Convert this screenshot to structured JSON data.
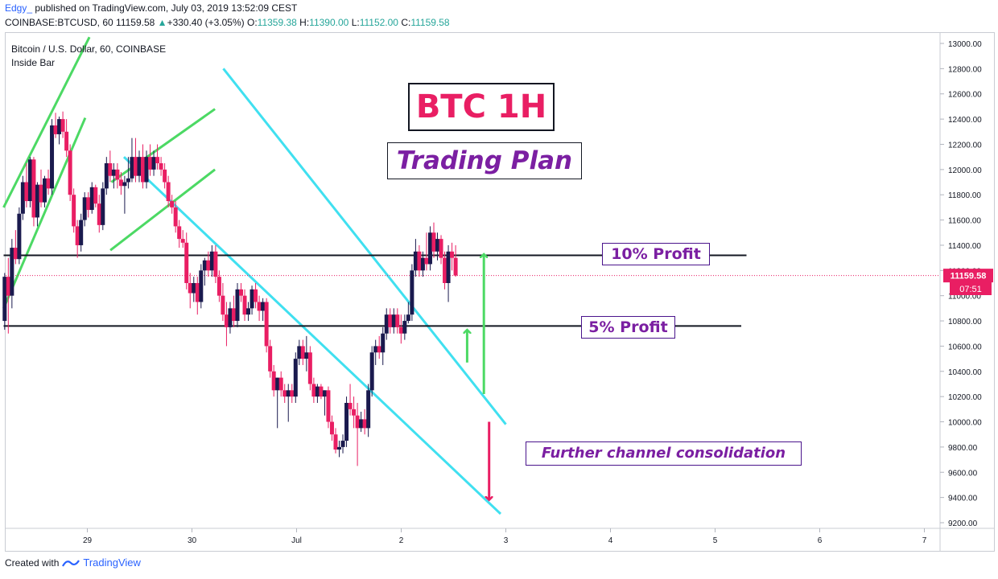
{
  "header": {
    "user": "Edgy_",
    "published": "published on TradingView.com, July 03, 2019 13:52:09 CEST",
    "symbol": "COINBASE:BTCUSD, 60",
    "last": "11159.58",
    "change_arrow": "▲",
    "change": "+330.40 (+3.05%)",
    "o_label": "O:",
    "o_value": "11359.38",
    "h_label": "H:",
    "h_value": "11390.00",
    "l_label": "L:",
    "l_value": "11152.00",
    "c_label": "C:",
    "c_value": "11159.58"
  },
  "legend": {
    "series_title": "Bitcoin / U.S. Dollar, 60, COINBASE",
    "indicator": "Inside Bar"
  },
  "annotations": {
    "title": "BTC 1H",
    "subtitle": "Trading Plan",
    "profit_10": "10% Profit",
    "profit_5": "5% Profit",
    "consolidation": "Further channel consolidation"
  },
  "price_tag": {
    "price": "11159.58",
    "countdown": "07:51"
  },
  "footer": {
    "created_with": "Created with",
    "brand": "TradingView"
  },
  "colors": {
    "bull": "#1a1a4e",
    "bear": "#e91e63",
    "channel_cyan": "#40e0f0",
    "channel_green": "#4cd964",
    "level_line": "#131722",
    "price_line": "#e91e63",
    "title_red": "#e91e63",
    "annotation_purple": "#7b1fa2"
  },
  "chart_data": {
    "type": "candlestick",
    "symbol": "COINBASE:BTCUSD",
    "interval": "60",
    "ylim": [
      9200,
      13000
    ],
    "y_ticks": [
      9200,
      9400,
      9600,
      9800,
      10000,
      10200,
      10400,
      10600,
      10800,
      11000,
      11200,
      11400,
      11600,
      11800,
      12000,
      12200,
      12400,
      12600,
      12800,
      13000
    ],
    "y_tick_labels": [
      "9200.00",
      "9400.00",
      "9600.00",
      "9800.00",
      "10000.00",
      "10200.00",
      "10400.00",
      "10600.00",
      "10800.00",
      "11000.00",
      "11200.00",
      "11400.00",
      "11600.00",
      "11800.00",
      "12000.00",
      "12200.00",
      "12400.00",
      "12600.00",
      "12800.00",
      "13000.00"
    ],
    "x_tick_labels": [
      "29",
      "30",
      "Jul",
      "2",
      "3",
      "4",
      "5",
      "6",
      "7"
    ],
    "x_range_days": [
      -1.8,
      6.0
    ],
    "current_price": 11159.58,
    "levels": [
      {
        "name": "10% Profit",
        "price": 11320
      },
      {
        "name": "5% Profit",
        "price": 10760
      }
    ],
    "channels": [
      {
        "color": "cyan",
        "points": [
          [
            0.3,
            12800
          ],
          [
            3.0,
            9980
          ]
        ]
      },
      {
        "color": "cyan",
        "points": [
          [
            -0.65,
            12100
          ],
          [
            2.95,
            9270
          ]
        ]
      },
      {
        "color": "green",
        "points": [
          [
            -1.8,
            11700
          ],
          [
            -0.98,
            13050
          ]
        ]
      },
      {
        "color": "green",
        "points": [
          [
            -1.8,
            10900
          ],
          [
            -1.02,
            12410
          ]
        ]
      },
      {
        "color": "green",
        "points": [
          [
            -0.77,
            11900
          ],
          [
            0.22,
            12480
          ]
        ]
      },
      {
        "color": "green",
        "points": [
          [
            -0.78,
            11360
          ],
          [
            0.22,
            12000
          ]
        ]
      }
    ],
    "arrows": [
      {
        "color": "green",
        "from": [
          2.79,
          10220
        ],
        "to": [
          2.79,
          11330
        ]
      },
      {
        "color": "green",
        "from": [
          2.63,
          10470
        ],
        "to": [
          2.63,
          10730
        ]
      },
      {
        "color": "red",
        "from": [
          2.84,
          10000
        ],
        "to": [
          2.84,
          9380
        ]
      }
    ],
    "candles": [
      {
        "o": 10800,
        "h": 11180,
        "l": 10730,
        "c": 11150
      },
      {
        "o": 11150,
        "h": 11300,
        "l": 10700,
        "c": 11000
      },
      {
        "o": 11000,
        "h": 11450,
        "l": 10900,
        "c": 11380
      },
      {
        "o": 11380,
        "h": 11520,
        "l": 11250,
        "c": 11290
      },
      {
        "o": 11290,
        "h": 11700,
        "l": 11250,
        "c": 11650
      },
      {
        "o": 11650,
        "h": 11950,
        "l": 11600,
        "c": 11900
      },
      {
        "o": 11900,
        "h": 12050,
        "l": 11700,
        "c": 11750
      },
      {
        "o": 11750,
        "h": 12100,
        "l": 11700,
        "c": 12080
      },
      {
        "o": 12080,
        "h": 12100,
        "l": 11550,
        "c": 11620
      },
      {
        "o": 11620,
        "h": 11900,
        "l": 11550,
        "c": 11880
      },
      {
        "o": 11880,
        "h": 12000,
        "l": 11700,
        "c": 11740
      },
      {
        "o": 11740,
        "h": 11950,
        "l": 11700,
        "c": 11930
      },
      {
        "o": 11930,
        "h": 12000,
        "l": 11800,
        "c": 11850
      },
      {
        "o": 11850,
        "h": 12400,
        "l": 11800,
        "c": 12350
      },
      {
        "o": 12350,
        "h": 12450,
        "l": 12250,
        "c": 12280
      },
      {
        "o": 12280,
        "h": 12420,
        "l": 12200,
        "c": 12400
      },
      {
        "o": 12400,
        "h": 12460,
        "l": 12250,
        "c": 12300
      },
      {
        "o": 12300,
        "h": 12400,
        "l": 12100,
        "c": 12150
      },
      {
        "o": 12150,
        "h": 12200,
        "l": 11750,
        "c": 11800
      },
      {
        "o": 11800,
        "h": 11850,
        "l": 11500,
        "c": 11550
      },
      {
        "o": 11550,
        "h": 11600,
        "l": 11300,
        "c": 11400
      },
      {
        "o": 11400,
        "h": 11650,
        "l": 11350,
        "c": 11600
      },
      {
        "o": 11600,
        "h": 11820,
        "l": 11550,
        "c": 11780
      },
      {
        "o": 11780,
        "h": 11820,
        "l": 11620,
        "c": 11680
      },
      {
        "o": 11680,
        "h": 11900,
        "l": 11650,
        "c": 11860
      },
      {
        "o": 11860,
        "h": 11880,
        "l": 11700,
        "c": 11730
      },
      {
        "o": 11730,
        "h": 11800,
        "l": 11500,
        "c": 11560
      },
      {
        "o": 11560,
        "h": 11900,
        "l": 11520,
        "c": 11850
      },
      {
        "o": 11850,
        "h": 12100,
        "l": 11800,
        "c": 12050
      },
      {
        "o": 12050,
        "h": 12150,
        "l": 11900,
        "c": 11950
      },
      {
        "o": 11950,
        "h": 12050,
        "l": 11850,
        "c": 12000
      },
      {
        "o": 12000,
        "h": 12050,
        "l": 11850,
        "c": 11920
      },
      {
        "o": 11920,
        "h": 11980,
        "l": 11800,
        "c": 11870
      },
      {
        "o": 11870,
        "h": 11950,
        "l": 11650,
        "c": 11900
      },
      {
        "o": 11900,
        "h": 12100,
        "l": 11850,
        "c": 11930
      },
      {
        "o": 11930,
        "h": 12250,
        "l": 11900,
        "c": 12100
      },
      {
        "o": 12100,
        "h": 12250,
        "l": 11900,
        "c": 11950
      },
      {
        "o": 11950,
        "h": 12150,
        "l": 11900,
        "c": 12100
      },
      {
        "o": 12100,
        "h": 12200,
        "l": 11850,
        "c": 11900
      },
      {
        "o": 11900,
        "h": 12150,
        "l": 11850,
        "c": 12100
      },
      {
        "o": 12100,
        "h": 12200,
        "l": 11950,
        "c": 12000
      },
      {
        "o": 12000,
        "h": 12150,
        "l": 11950,
        "c": 12100
      },
      {
        "o": 12100,
        "h": 12200,
        "l": 12000,
        "c": 12050
      },
      {
        "o": 12050,
        "h": 12100,
        "l": 11950,
        "c": 12000
      },
      {
        "o": 12000,
        "h": 12050,
        "l": 11850,
        "c": 11900
      },
      {
        "o": 11900,
        "h": 11950,
        "l": 11700,
        "c": 11750
      },
      {
        "o": 11750,
        "h": 11800,
        "l": 11650,
        "c": 11700
      },
      {
        "o": 11700,
        "h": 11750,
        "l": 11500,
        "c": 11550
      },
      {
        "o": 11550,
        "h": 11600,
        "l": 11380,
        "c": 11450
      },
      {
        "o": 11450,
        "h": 11520,
        "l": 11380,
        "c": 11420
      },
      {
        "o": 11420,
        "h": 11500,
        "l": 11050,
        "c": 11100
      },
      {
        "o": 11100,
        "h": 11180,
        "l": 10900,
        "c": 11020
      },
      {
        "o": 11020,
        "h": 11150,
        "l": 10950,
        "c": 11100
      },
      {
        "o": 11100,
        "h": 11150,
        "l": 10850,
        "c": 10950
      },
      {
        "o": 10950,
        "h": 11250,
        "l": 10900,
        "c": 11200
      },
      {
        "o": 11200,
        "h": 11300,
        "l": 11080,
        "c": 11280
      },
      {
        "o": 11280,
        "h": 11350,
        "l": 11150,
        "c": 11200
      },
      {
        "o": 11200,
        "h": 11400,
        "l": 11150,
        "c": 11350
      },
      {
        "o": 11350,
        "h": 11400,
        "l": 11100,
        "c": 11150
      },
      {
        "o": 11150,
        "h": 11200,
        "l": 10950,
        "c": 11000
      },
      {
        "o": 11000,
        "h": 11100,
        "l": 10800,
        "c": 10850
      },
      {
        "o": 10850,
        "h": 10950,
        "l": 10600,
        "c": 10750
      },
      {
        "o": 10750,
        "h": 10950,
        "l": 10700,
        "c": 10900
      },
      {
        "o": 10900,
        "h": 11000,
        "l": 10750,
        "c": 10800
      },
      {
        "o": 10800,
        "h": 11100,
        "l": 10750,
        "c": 11050
      },
      {
        "o": 11050,
        "h": 11100,
        "l": 10950,
        "c": 11000
      },
      {
        "o": 11000,
        "h": 11050,
        "l": 10800,
        "c": 10850
      },
      {
        "o": 10850,
        "h": 10950,
        "l": 10800,
        "c": 10900
      },
      {
        "o": 10900,
        "h": 11080,
        "l": 10850,
        "c": 11050
      },
      {
        "o": 11050,
        "h": 11100,
        "l": 10900,
        "c": 10950
      },
      {
        "o": 10950,
        "h": 11000,
        "l": 10800,
        "c": 10880
      },
      {
        "o": 10880,
        "h": 10980,
        "l": 10800,
        "c": 10950
      },
      {
        "o": 10950,
        "h": 10980,
        "l": 10550,
        "c": 10600
      },
      {
        "o": 10600,
        "h": 10650,
        "l": 10350,
        "c": 10400
      },
      {
        "o": 10400,
        "h": 10450,
        "l": 10200,
        "c": 10250
      },
      {
        "o": 10250,
        "h": 10350,
        "l": 9950,
        "c": 10350
      },
      {
        "o": 10350,
        "h": 10400,
        "l": 10200,
        "c": 10250
      },
      {
        "o": 10250,
        "h": 10300,
        "l": 10150,
        "c": 10200
      },
      {
        "o": 10200,
        "h": 10300,
        "l": 10000,
        "c": 10250
      },
      {
        "o": 10250,
        "h": 10300,
        "l": 10150,
        "c": 10200
      },
      {
        "o": 10200,
        "h": 10550,
        "l": 10150,
        "c": 10500
      },
      {
        "o": 10500,
        "h": 10650,
        "l": 10450,
        "c": 10600
      },
      {
        "o": 10600,
        "h": 10650,
        "l": 10450,
        "c": 10500
      },
      {
        "o": 10500,
        "h": 10680,
        "l": 10400,
        "c": 10550
      },
      {
        "o": 10550,
        "h": 10600,
        "l": 10250,
        "c": 10300
      },
      {
        "o": 10300,
        "h": 10350,
        "l": 10150,
        "c": 10200
      },
      {
        "o": 10200,
        "h": 10300,
        "l": 10150,
        "c": 10280
      },
      {
        "o": 10280,
        "h": 10300,
        "l": 10180,
        "c": 10200
      },
      {
        "o": 10200,
        "h": 10250,
        "l": 10050,
        "c": 10250
      },
      {
        "o": 10250,
        "h": 10280,
        "l": 9950,
        "c": 10000
      },
      {
        "o": 10000,
        "h": 10050,
        "l": 9850,
        "c": 9900
      },
      {
        "o": 9900,
        "h": 9950,
        "l": 9750,
        "c": 9780
      },
      {
        "o": 9780,
        "h": 9850,
        "l": 9720,
        "c": 9800
      },
      {
        "o": 9800,
        "h": 9900,
        "l": 9750,
        "c": 9850
      },
      {
        "o": 9850,
        "h": 10200,
        "l": 9800,
        "c": 10150
      },
      {
        "o": 10150,
        "h": 10300,
        "l": 10050,
        "c": 10100
      },
      {
        "o": 10100,
        "h": 10200,
        "l": 9950,
        "c": 10050
      },
      {
        "o": 10050,
        "h": 10150,
        "l": 9650,
        "c": 9950
      },
      {
        "o": 9950,
        "h": 10080,
        "l": 9920,
        "c": 10020
      },
      {
        "o": 10020,
        "h": 10100,
        "l": 9900,
        "c": 9950
      },
      {
        "o": 9950,
        "h": 10300,
        "l": 9880,
        "c": 10250
      },
      {
        "o": 10250,
        "h": 10600,
        "l": 10200,
        "c": 10550
      },
      {
        "o": 10550,
        "h": 10650,
        "l": 10450,
        "c": 10600
      },
      {
        "o": 10600,
        "h": 10680,
        "l": 10500,
        "c": 10550
      },
      {
        "o": 10550,
        "h": 10750,
        "l": 10450,
        "c": 10700
      },
      {
        "o": 10700,
        "h": 10900,
        "l": 10650,
        "c": 10850
      },
      {
        "o": 10850,
        "h": 10900,
        "l": 10700,
        "c": 10750
      },
      {
        "o": 10750,
        "h": 10900,
        "l": 10700,
        "c": 10850
      },
      {
        "o": 10850,
        "h": 10900,
        "l": 10700,
        "c": 10750
      },
      {
        "o": 10750,
        "h": 10850,
        "l": 10620,
        "c": 10700
      },
      {
        "o": 10700,
        "h": 10850,
        "l": 10650,
        "c": 10800
      },
      {
        "o": 10800,
        "h": 10950,
        "l": 10780,
        "c": 10850
      },
      {
        "o": 10850,
        "h": 11250,
        "l": 10800,
        "c": 11200
      },
      {
        "o": 11200,
        "h": 11450,
        "l": 11150,
        "c": 11350
      },
      {
        "o": 11350,
        "h": 11400,
        "l": 11150,
        "c": 11200
      },
      {
        "o": 11200,
        "h": 11350,
        "l": 11150,
        "c": 11300
      },
      {
        "o": 11300,
        "h": 11500,
        "l": 11200,
        "c": 11250
      },
      {
        "o": 11250,
        "h": 11550,
        "l": 11200,
        "c": 11500
      },
      {
        "o": 11500,
        "h": 11580,
        "l": 11300,
        "c": 11350
      },
      {
        "o": 11350,
        "h": 11500,
        "l": 11280,
        "c": 11450
      },
      {
        "o": 11450,
        "h": 11480,
        "l": 11250,
        "c": 11300
      },
      {
        "o": 11300,
        "h": 11350,
        "l": 11050,
        "c": 11100
      },
      {
        "o": 11100,
        "h": 11400,
        "l": 10950,
        "c": 11350
      },
      {
        "o": 11350,
        "h": 11420,
        "l": 11200,
        "c": 11300
      },
      {
        "o": 11300,
        "h": 11400,
        "l": 11150,
        "c": 11160
      }
    ]
  }
}
